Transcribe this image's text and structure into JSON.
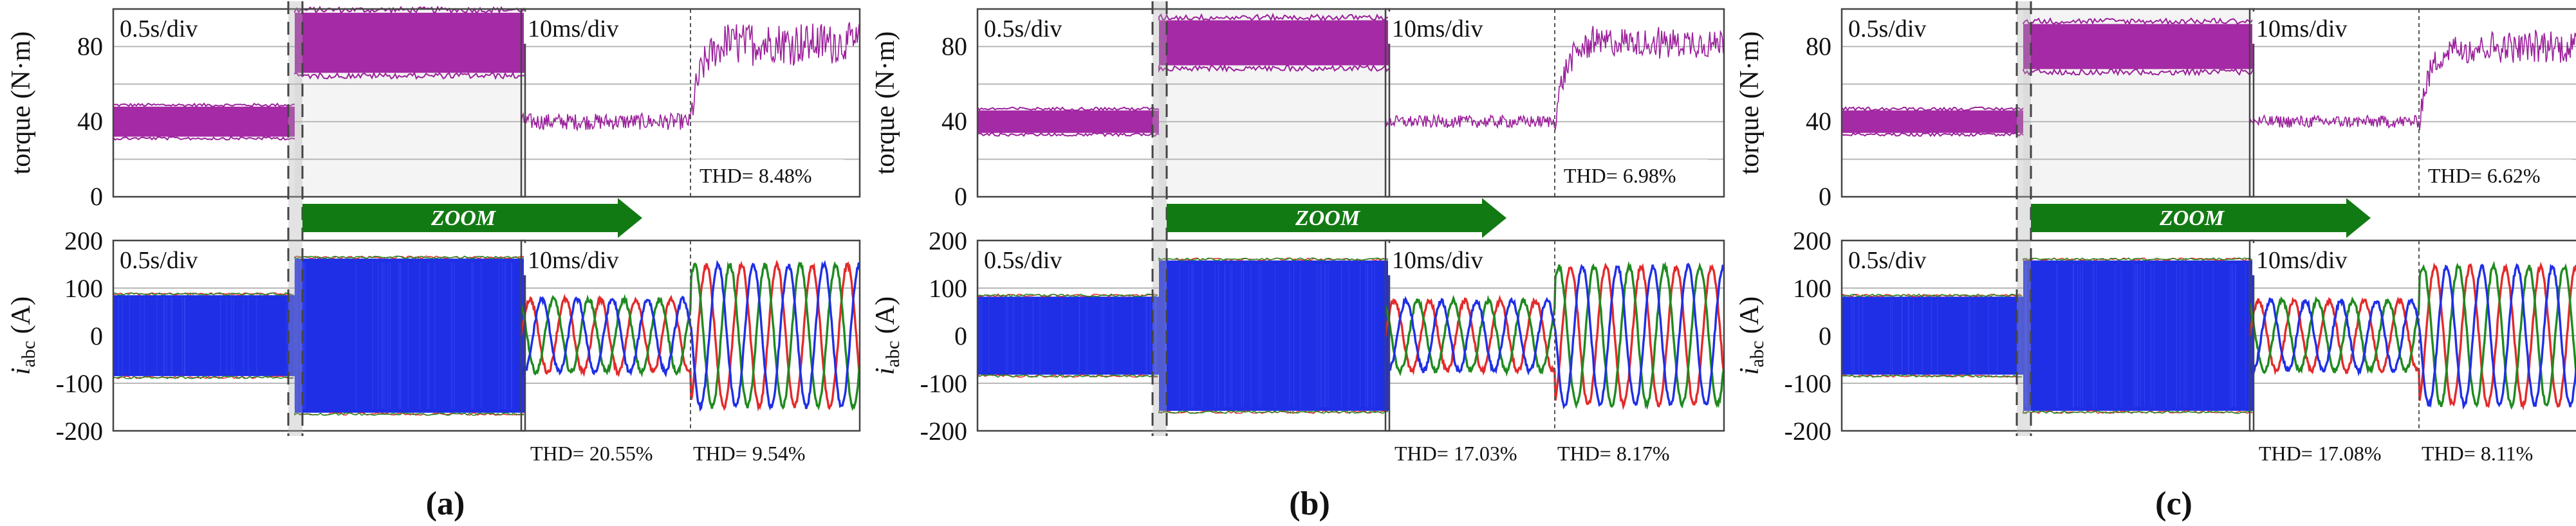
{
  "figure": {
    "zoom_label": "ZOOM",
    "colors": {
      "torque": "#9b1f9b",
      "torque_fill": "#a52aa5",
      "phase_a": "#e32b2b",
      "phase_b": "#1f8a1f",
      "phase_c": "#1f2fe6",
      "zoom_arrow": "#127a12",
      "frame": "#444444",
      "grid": "#b8b8b8",
      "shade": "#e8e8e8"
    }
  },
  "chart_data": [
    {
      "id": "a",
      "panel_label": "(a)",
      "type": "line",
      "torque": {
        "ylabel": "torque (N·m)",
        "yticks": [
          0,
          40,
          80
        ],
        "ylim": [
          0,
          100
        ],
        "overview_time_div": "0.5s/div",
        "zoom_time_div": "10ms/div",
        "before_level": 40,
        "before_ripple": 8,
        "after_level": 82,
        "after_ripple": 16,
        "thd": "THD= 8.48%"
      },
      "current": {
        "ylabel_italic": "i",
        "ylabel_sub": "abc",
        "ylabel_unit": " (A)",
        "yticks": [
          200,
          100,
          0,
          -100,
          -200
        ],
        "ylim": [
          -200,
          200
        ],
        "overview_time_div": "0.5s/div",
        "zoom_time_div": "10ms/div",
        "before_amplitude": 85,
        "after_amplitude": 162,
        "thd_before": "THD= 20.55%",
        "thd_after": "THD= 9.54%"
      }
    },
    {
      "id": "b",
      "panel_label": "(b)",
      "type": "line",
      "torque": {
        "ylabel": "torque (N·m)",
        "yticks": [
          0,
          40,
          80
        ],
        "ylim": [
          0,
          100
        ],
        "overview_time_div": "0.5s/div",
        "zoom_time_div": "10ms/div",
        "before_level": 40,
        "before_ripple": 6,
        "after_level": 82,
        "after_ripple": 12,
        "thd": "THD= 6.98%"
      },
      "current": {
        "ylabel_italic": "i",
        "ylabel_sub": "abc",
        "ylabel_unit": " (A)",
        "yticks": [
          200,
          100,
          0,
          -100,
          -200
        ],
        "ylim": [
          -200,
          200
        ],
        "overview_time_div": "0.5s/div",
        "zoom_time_div": "10ms/div",
        "before_amplitude": 82,
        "after_amplitude": 158,
        "thd_before": "THD= 17.03%",
        "thd_after": "THD= 8.17%"
      }
    },
    {
      "id": "c",
      "panel_label": "(c)",
      "type": "line",
      "torque": {
        "ylabel": "torque (N·m)",
        "yticks": [
          0,
          40,
          80
        ],
        "ylim": [
          0,
          100
        ],
        "overview_time_div": "0.5s/div",
        "zoom_time_div": "10ms/div",
        "before_level": 40,
        "before_ripple": 6,
        "after_level": 80,
        "after_ripple": 12,
        "thd": "THD= 6.62%"
      },
      "current": {
        "ylabel_italic": "i",
        "ylabel_sub": "abc",
        "ylabel_unit": " (A)",
        "yticks": [
          200,
          100,
          0,
          -100,
          -200
        ],
        "ylim": [
          -200,
          200
        ],
        "overview_time_div": "0.5s/div",
        "zoom_time_div": "10ms/div",
        "before_amplitude": 82,
        "after_amplitude": 158,
        "thd_before": "THD= 17.08%",
        "thd_after": "THD= 8.11%"
      }
    }
  ]
}
